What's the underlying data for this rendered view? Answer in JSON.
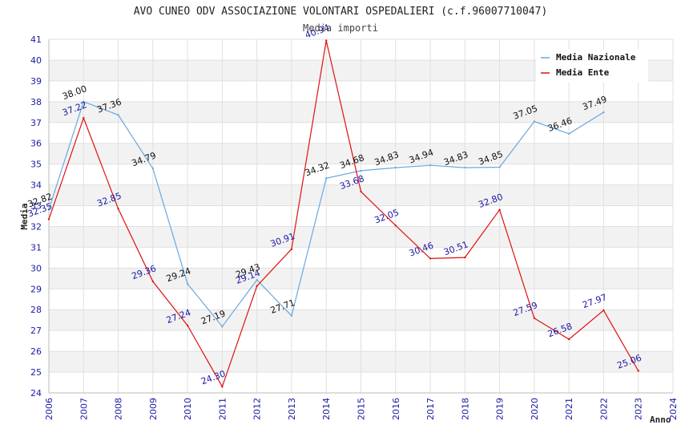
{
  "chart_data": {
    "type": "line",
    "title": "AVO CUNEO ODV ASSOCIAZIONE VOLONTARI OSPEDALIERI (c.f.96007710047)",
    "subtitle": "Media importi",
    "xlabel": "Anno",
    "ylabel": "Media",
    "ylim": [
      24,
      41
    ],
    "y_ticks": [
      "24",
      "25",
      "26",
      "27",
      "28",
      "29",
      "30",
      "31",
      "32",
      "33",
      "34",
      "35",
      "36",
      "37",
      "38",
      "39",
      "40",
      "41"
    ],
    "x": [
      "2006",
      "2007",
      "2008",
      "2009",
      "2010",
      "2011",
      "2012",
      "2013",
      "2014",
      "2015",
      "2016",
      "2017",
      "2018",
      "2019",
      "2020",
      "2021",
      "2022",
      "2023",
      "2024"
    ],
    "x_tick_labels": [
      "2006",
      "2007",
      "2008",
      "2009",
      "2010",
      "2011",
      "2012",
      "2013",
      "2014",
      "2015",
      "2016",
      "2017",
      "2018",
      "2019",
      "2020",
      "2021",
      "2022",
      "2023",
      "2024"
    ],
    "grid": true,
    "legend_position": "top-right",
    "series": [
      {
        "name": "Media Nazionale",
        "color": "#6aa8e0",
        "label_color": "#111111",
        "points": [
          {
            "x": "2006",
            "y": 32.82,
            "label": "32.82"
          },
          {
            "x": "2007",
            "y": 38.0,
            "label": "38.00"
          },
          {
            "x": "2008",
            "y": 37.36,
            "label": "37.36"
          },
          {
            "x": "2009",
            "y": 34.79,
            "label": "34.79"
          },
          {
            "x": "2010",
            "y": 29.24,
            "label": "29.24"
          },
          {
            "x": "2011",
            "y": 27.19,
            "label": "27.19"
          },
          {
            "x": "2012",
            "y": 29.43,
            "label": "29.43"
          },
          {
            "x": "2013",
            "y": 27.71,
            "label": "27.71"
          },
          {
            "x": "2014",
            "y": 34.32,
            "label": "34.32"
          },
          {
            "x": "2015",
            "y": 34.68,
            "label": "34.68"
          },
          {
            "x": "2016",
            "y": 34.83,
            "label": "34.83"
          },
          {
            "x": "2017",
            "y": 34.94,
            "label": "34.94"
          },
          {
            "x": "2018",
            "y": 34.83,
            "label": "34.83"
          },
          {
            "x": "2019",
            "y": 34.85,
            "label": "34.85"
          },
          {
            "x": "2020",
            "y": 37.05,
            "label": "37.05"
          },
          {
            "x": "2021",
            "y": 36.46,
            "label": "36.46"
          },
          {
            "x": "2022",
            "y": 37.49,
            "label": "37.49"
          }
        ]
      },
      {
        "name": "Media Ente",
        "color": "#e01010",
        "label_color": "#1a1aa6",
        "points": [
          {
            "x": "2006",
            "y": 32.35,
            "label": "32.35"
          },
          {
            "x": "2007",
            "y": 37.22,
            "label": "37.22"
          },
          {
            "x": "2008",
            "y": 32.85,
            "label": "32.85"
          },
          {
            "x": "2009",
            "y": 29.36,
            "label": "29.36"
          },
          {
            "x": "2010",
            "y": 27.24,
            "label": "27.24"
          },
          {
            "x": "2011",
            "y": 24.3,
            "label": "24.30"
          },
          {
            "x": "2012",
            "y": 29.14,
            "label": "29.14"
          },
          {
            "x": "2013",
            "y": 30.91,
            "label": "30.91"
          },
          {
            "x": "2014",
            "y": 40.94,
            "label": "40.94"
          },
          {
            "x": "2015",
            "y": 33.68,
            "label": "33.68"
          },
          {
            "x": "2016",
            "y": 32.05,
            "label": "32.05"
          },
          {
            "x": "2017",
            "y": 30.46,
            "label": "30.46"
          },
          {
            "x": "2018",
            "y": 30.51,
            "label": "30.51"
          },
          {
            "x": "2019",
            "y": 32.8,
            "label": "32.80"
          },
          {
            "x": "2020",
            "y": 27.59,
            "label": "27.59"
          },
          {
            "x": "2021",
            "y": 26.58,
            "label": "26.58"
          },
          {
            "x": "2022",
            "y": 27.97,
            "label": "27.97"
          },
          {
            "x": "2023",
            "y": 25.06,
            "label": "25.06"
          }
        ]
      }
    ]
  }
}
